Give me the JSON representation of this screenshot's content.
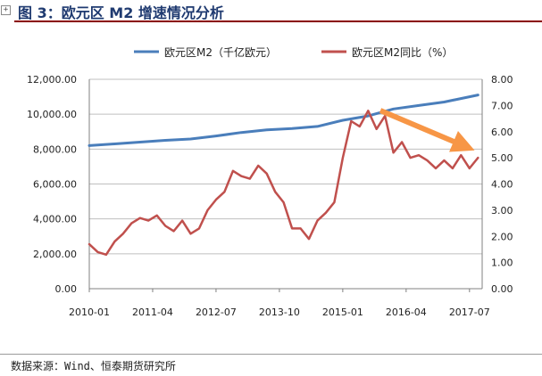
{
  "figure": {
    "title": "图 3：欧元区 M2 增速情况分析",
    "source": "数据来源：Wind、恒泰期货研究所"
  },
  "chart_data": {
    "type": "line",
    "legend_position": "top",
    "left_ylim": [
      0,
      12000
    ],
    "right_ylim": [
      0,
      8
    ],
    "left_ticks": [
      "0.00",
      "2,000.00",
      "4,000.00",
      "6,000.00",
      "8,000.00",
      "10,000.00",
      "12,000.00"
    ],
    "right_ticks": [
      "0.00",
      "1.00",
      "2.00",
      "3.00",
      "4.00",
      "5.00",
      "6.00",
      "7.00",
      "8.00"
    ],
    "x_labels": [
      "2010-01",
      "2011-04",
      "2012-07",
      "2013-10",
      "2015-01",
      "2016-04",
      "2017-07"
    ],
    "x_range": [
      "2010-01",
      "2017-10"
    ],
    "series": [
      {
        "name": "欧元区M2（千亿欧元）",
        "axis": "left",
        "color": "#4a7ebb",
        "x": [
          "2010-01",
          "2010-07",
          "2011-01",
          "2011-07",
          "2012-01",
          "2012-07",
          "2013-01",
          "2013-07",
          "2014-01",
          "2014-07",
          "2015-01",
          "2015-07",
          "2016-01",
          "2016-07",
          "2017-01",
          "2017-07",
          "2017-09"
        ],
        "values": [
          8200,
          8300,
          8400,
          8500,
          8580,
          8750,
          8950,
          9100,
          9180,
          9300,
          9650,
          9900,
          10300,
          10500,
          10700,
          11000,
          11100
        ]
      },
      {
        "name": "欧元区M2同比（%）",
        "axis": "right",
        "color": "#c0504d",
        "x": [
          "2010-01",
          "2010-03",
          "2010-05",
          "2010-07",
          "2010-09",
          "2010-11",
          "2011-01",
          "2011-03",
          "2011-05",
          "2011-07",
          "2011-09",
          "2011-11",
          "2012-01",
          "2012-03",
          "2012-05",
          "2012-07",
          "2012-09",
          "2012-11",
          "2013-01",
          "2013-03",
          "2013-05",
          "2013-07",
          "2013-09",
          "2013-11",
          "2014-01",
          "2014-03",
          "2014-05",
          "2014-07",
          "2014-09",
          "2014-11",
          "2015-01",
          "2015-03",
          "2015-05",
          "2015-07",
          "2015-09",
          "2015-11",
          "2016-01",
          "2016-03",
          "2016-05",
          "2016-07",
          "2016-09",
          "2016-11",
          "2017-01",
          "2017-03",
          "2017-05",
          "2017-07",
          "2017-09"
        ],
        "values": [
          1.7,
          1.4,
          1.3,
          1.8,
          2.1,
          2.5,
          2.7,
          2.6,
          2.8,
          2.4,
          2.2,
          2.6,
          2.1,
          2.3,
          3.0,
          3.4,
          3.7,
          4.5,
          4.3,
          4.2,
          4.7,
          4.4,
          3.7,
          3.3,
          2.3,
          2.3,
          1.9,
          2.6,
          2.9,
          3.3,
          5.0,
          6.4,
          6.2,
          6.8,
          6.1,
          6.6,
          5.2,
          5.6,
          5.0,
          5.1,
          4.9,
          4.6,
          4.9,
          4.6,
          5.1,
          4.6,
          5.0
        ]
      }
    ],
    "annotation": {
      "type": "arrow",
      "color": "#f79646",
      "from": [
        "2015-10",
        6.8
      ],
      "to": [
        "2017-08",
        5.3
      ]
    }
  }
}
